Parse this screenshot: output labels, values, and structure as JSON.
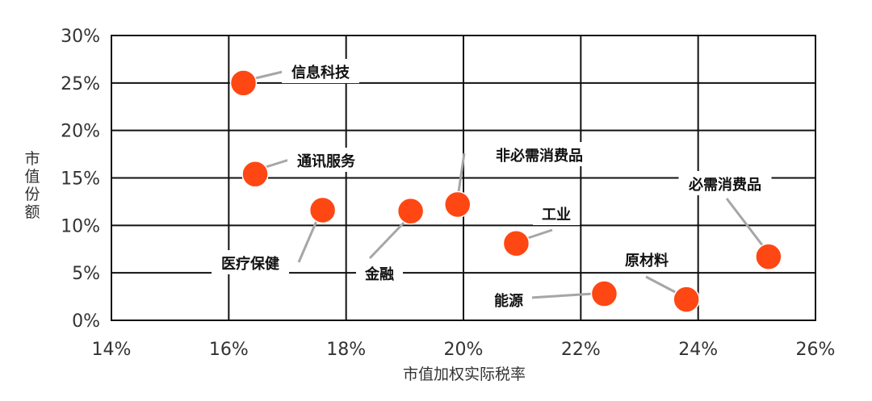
{
  "chart_data": {
    "type": "scatter",
    "title": "",
    "xlabel": "市值加权实际税率",
    "ylabel": "市值份额",
    "xlim": [
      14,
      26
    ],
    "ylim": [
      0,
      30
    ],
    "xticks": [
      "14%",
      "16%",
      "18%",
      "20%",
      "22%",
      "24%",
      "26%"
    ],
    "yticks": [
      "0%",
      "5%",
      "10%",
      "15%",
      "20%",
      "25%",
      "30%"
    ],
    "grid": true,
    "marker_color": "#FF4713",
    "points": [
      {
        "label": "信息科技",
        "x": 16.25,
        "y": 25.0
      },
      {
        "label": "通讯服务",
        "x": 16.45,
        "y": 15.4
      },
      {
        "label": "医疗保健",
        "x": 17.6,
        "y": 11.6
      },
      {
        "label": "金融",
        "x": 19.1,
        "y": 11.5
      },
      {
        "label": "非必需消费品",
        "x": 19.9,
        "y": 12.2
      },
      {
        "label": "工业",
        "x": 20.9,
        "y": 8.1
      },
      {
        "label": "能源",
        "x": 22.4,
        "y": 2.8
      },
      {
        "label": "原材料",
        "x": 23.8,
        "y": 2.2
      },
      {
        "label": "必需消费品",
        "x": 25.2,
        "y": 6.7
      }
    ]
  }
}
